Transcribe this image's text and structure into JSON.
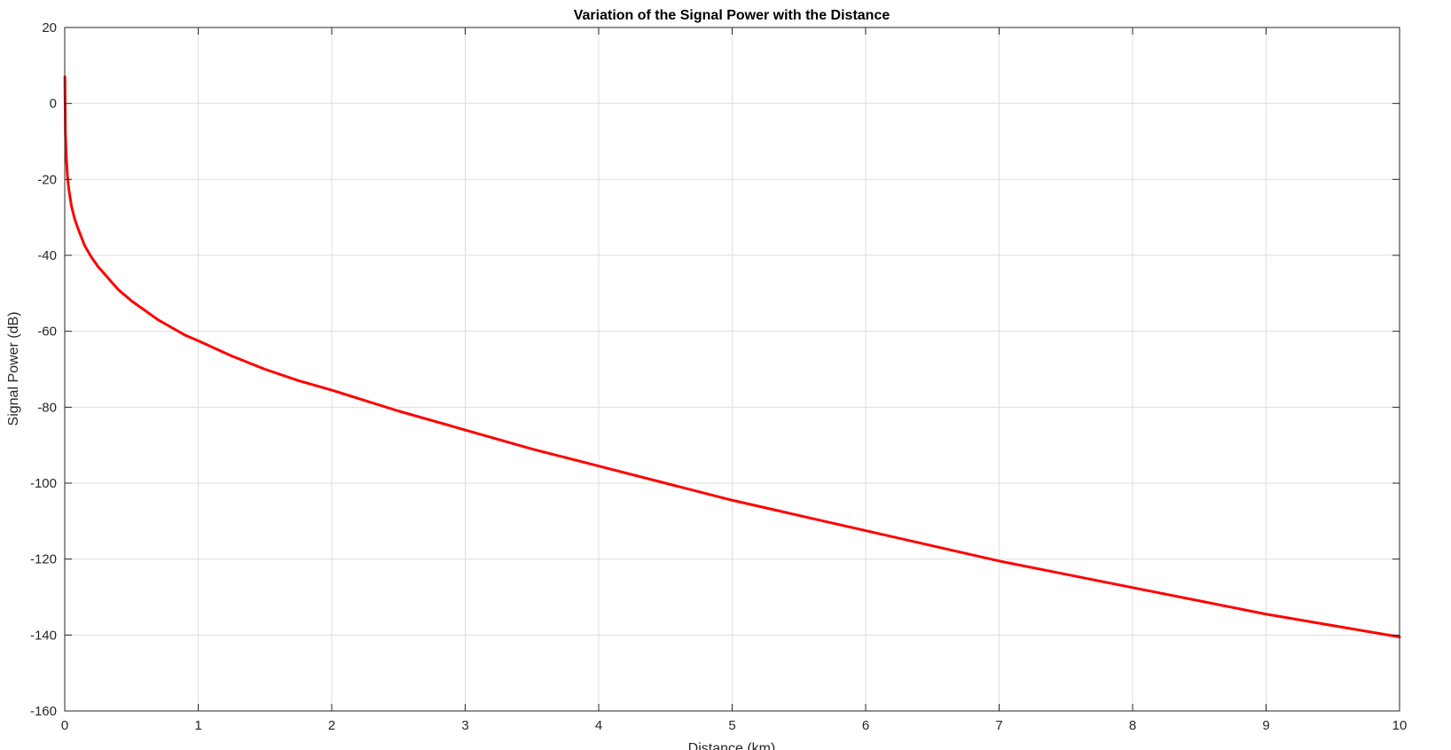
{
  "chart_data": {
    "type": "line",
    "title": "Variation of the Signal Power with the Distance",
    "xlabel": "Distance (km)",
    "ylabel": "Signal Power (dB)",
    "xlim": [
      0,
      10
    ],
    "ylim": [
      -160,
      20
    ],
    "xticks": [
      0,
      1,
      2,
      3,
      4,
      5,
      6,
      7,
      8,
      9,
      10
    ],
    "yticks": [
      20,
      0,
      -20,
      -40,
      -60,
      -80,
      -100,
      -120,
      -140,
      -160
    ],
    "grid": true,
    "series": [
      {
        "color": "#ff0000",
        "x": [
          0.001,
          0.005,
          0.01,
          0.02,
          0.03,
          0.05,
          0.075,
          0.1,
          0.15,
          0.2,
          0.25,
          0.3,
          0.4,
          0.5,
          0.6,
          0.7,
          0.8,
          0.9,
          1,
          1.25,
          1.5,
          1.75,
          2,
          2.5,
          3,
          3.5,
          4,
          4.5,
          5,
          5.5,
          6,
          6.5,
          7,
          7.5,
          8,
          8.5,
          9,
          9.5,
          10
        ],
        "y": [
          7,
          -8,
          -13,
          -19,
          -22.5,
          -27,
          -30.5,
          -33,
          -37.5,
          -40.5,
          -43,
          -45,
          -49,
          -52,
          -54.5,
          -57,
          -59,
          -61,
          -62.5,
          -66.5,
          -70,
          -73,
          -75.5,
          -81,
          -86,
          -91,
          -95.5,
          -100,
          -104.5,
          -108.5,
          -112.5,
          -116.5,
          -120.5,
          -124,
          -127.5,
          -131,
          -134.5,
          -137.5,
          -140.5
        ]
      }
    ]
  }
}
